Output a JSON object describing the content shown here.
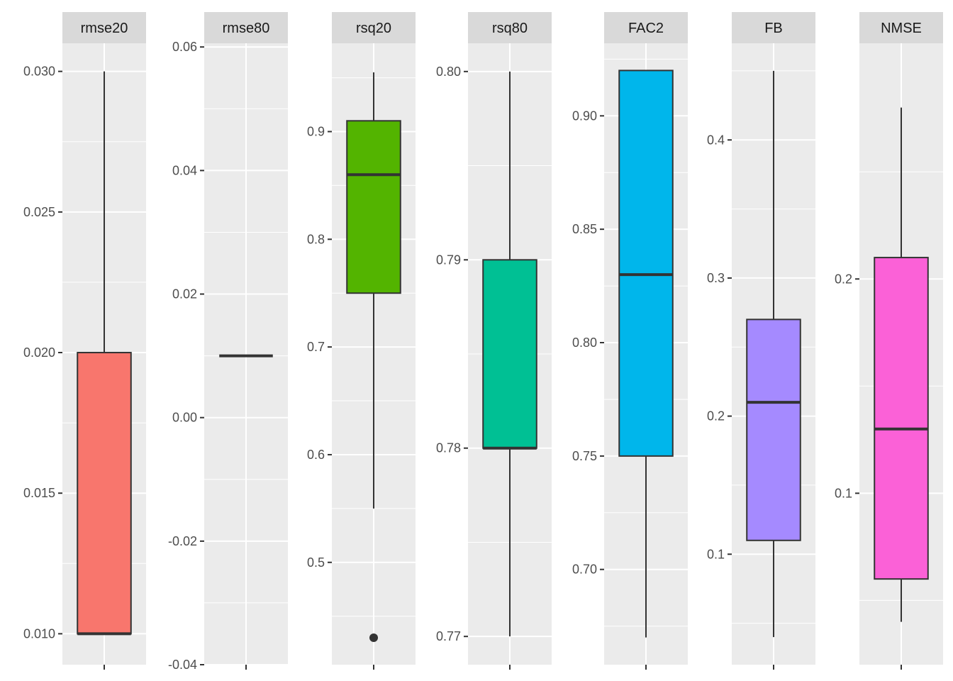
{
  "chart_data": {
    "type": "boxplot",
    "facet_scales": "free_y",
    "legend": "none",
    "grid": true,
    "xlabel": "",
    "ylabel": "",
    "panels": [
      {
        "label": "rmse20",
        "fill": "#F8766D",
        "ylim": [
          0.0089,
          0.031
        ],
        "ticks": [
          "0.010",
          "0.015",
          "0.020",
          "0.025",
          "0.030"
        ],
        "stats": {
          "whisker_low": 0.01,
          "q1": 0.01,
          "median": 0.01,
          "q3": 0.02,
          "whisker_high": 0.03
        },
        "outliers": []
      },
      {
        "label": "rmse80",
        "fill": "#C49A00",
        "ylim": [
          -0.04,
          0.0606
        ],
        "ticks": [
          "-0.04",
          "-0.02",
          "0.00",
          "0.02",
          "0.04",
          "0.06"
        ],
        "stats": {
          "whisker_low": 0.01,
          "q1": 0.01,
          "median": 0.01,
          "q3": 0.01,
          "whisker_high": 0.01
        },
        "outliers": []
      },
      {
        "label": "rsq20",
        "fill": "#53B400",
        "ylim": [
          0.405,
          0.982
        ],
        "ticks": [
          "0.5",
          "0.6",
          "0.7",
          "0.8",
          "0.9"
        ],
        "stats": {
          "whisker_low": 0.55,
          "q1": 0.75,
          "median": 0.86,
          "q3": 0.91,
          "whisker_high": 0.955
        },
        "outliers": [
          0.43
        ]
      },
      {
        "label": "rsq80",
        "fill": "#00C094",
        "ylim": [
          0.7685,
          0.8015
        ],
        "ticks": [
          "0.77",
          "0.78",
          "0.79",
          "0.80"
        ],
        "stats": {
          "whisker_low": 0.77,
          "q1": 0.78,
          "median": 0.78,
          "q3": 0.79,
          "whisker_high": 0.8
        },
        "outliers": []
      },
      {
        "label": "FAC2",
        "fill": "#00B6EB",
        "ylim": [
          0.658,
          0.932
        ],
        "ticks": [
          "0.70",
          "0.75",
          "0.80",
          "0.85",
          "0.90"
        ],
        "stats": {
          "whisker_low": 0.67,
          "q1": 0.75,
          "median": 0.83,
          "q3": 0.92,
          "whisker_high": 0.92
        },
        "outliers": []
      },
      {
        "label": "FB",
        "fill": "#A58AFF",
        "ylim": [
          0.02,
          0.47
        ],
        "ticks": [
          "0.1",
          "0.2",
          "0.3",
          "0.4"
        ],
        "stats": {
          "whisker_low": 0.04,
          "q1": 0.11,
          "median": 0.21,
          "q3": 0.27,
          "whisker_high": 0.45
        },
        "outliers": []
      },
      {
        "label": "NMSE",
        "fill": "#FB61D7",
        "ylim": [
          0.02,
          0.31
        ],
        "ticks": [
          "0.1",
          "0.2"
        ],
        "stats": {
          "whisker_low": 0.04,
          "q1": 0.06,
          "median": 0.13,
          "q3": 0.21,
          "whisker_high": 0.28
        },
        "outliers": []
      }
    ]
  }
}
